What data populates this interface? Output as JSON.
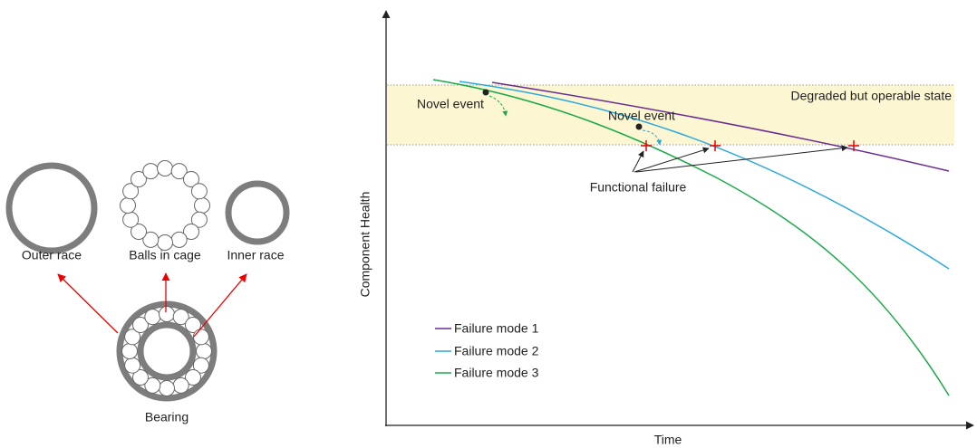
{
  "bearing": {
    "parts": [
      "Outer race",
      "Balls in cage",
      "Inner race"
    ],
    "label": "Bearing"
  },
  "chart": {
    "y_axis_label": "Component Health",
    "x_axis_label": "Time",
    "band_label": "Degraded but operable state",
    "novel_events": [
      "Novel event",
      "Novel event"
    ],
    "failure_label": "Functional failure",
    "legend": [
      "Failure mode 1",
      "Failure mode 2",
      "Failure mode 3"
    ]
  }
}
